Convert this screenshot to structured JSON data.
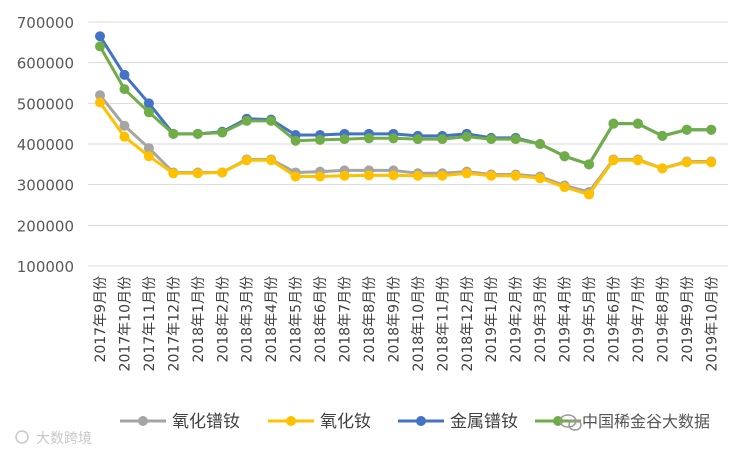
{
  "chart_data": {
    "type": "line",
    "title": "",
    "xlabel": "",
    "ylabel": "",
    "ylim": [
      100000,
      700000
    ],
    "yticks": [
      100000,
      200000,
      300000,
      400000,
      500000,
      600000,
      700000
    ],
    "grid": true,
    "legend": "bottom",
    "categories": [
      "2017年9月份",
      "2017年10月份",
      "2017年11月份",
      "2017年12月份",
      "2018年1月份",
      "2018年2月份",
      "2018年3月份",
      "2018年4月份",
      "2018年5月份",
      "2018年6月份",
      "2018年7月份",
      "2018年8月份",
      "2018年9月份",
      "2018年10月份",
      "2018年11月份",
      "2018年12月份",
      "2019年1月份",
      "2019年2月份",
      "2019年3月份",
      "2019年4月份",
      "2019年5月份",
      "2019年6月份",
      "2019年7月份",
      "2019年8月份",
      "2019年9月份",
      "2019年10月份"
    ],
    "series": [
      {
        "name": "氧化镨钕",
        "color": "#a5a5a5",
        "values": [
          520000,
          445000,
          390000,
          330000,
          330000,
          330000,
          362000,
          362000,
          330000,
          332000,
          335000,
          335000,
          335000,
          328000,
          328000,
          332000,
          325000,
          325000,
          320000,
          298000,
          282000,
          362000,
          362000,
          340000,
          357000,
          357000
        ]
      },
      {
        "name": "氧化钕",
        "color": "#ffc000",
        "values": [
          502000,
          418000,
          370000,
          328000,
          328000,
          330000,
          360000,
          360000,
          320000,
          320000,
          322000,
          323000,
          323000,
          322000,
          322000,
          328000,
          322000,
          322000,
          316000,
          294000,
          276000,
          360000,
          360000,
          340000,
          355000,
          355000
        ]
      },
      {
        "name": "金属镨钕",
        "color": "#4472c4",
        "values": [
          665000,
          570000,
          500000,
          425000,
          425000,
          430000,
          462000,
          460000,
          422000,
          422000,
          425000,
          425000,
          425000,
          420000,
          420000,
          425000,
          415000,
          415000,
          400000,
          370000,
          350000,
          450000,
          450000,
          420000,
          435000,
          435000
        ]
      },
      {
        "name": "",
        "color": "#70ad47",
        "values": [
          640000,
          535000,
          478000,
          425000,
          425000,
          428000,
          457000,
          457000,
          408000,
          410000,
          412000,
          414000,
          414000,
          412000,
          412000,
          418000,
          412000,
          412000,
          400000,
          370000,
          350000,
          450000,
          450000,
          420000,
          435000,
          435000
        ]
      }
    ]
  },
  "watermark_right": "中国稀金谷大数据",
  "watermark_left": "大数跨境"
}
